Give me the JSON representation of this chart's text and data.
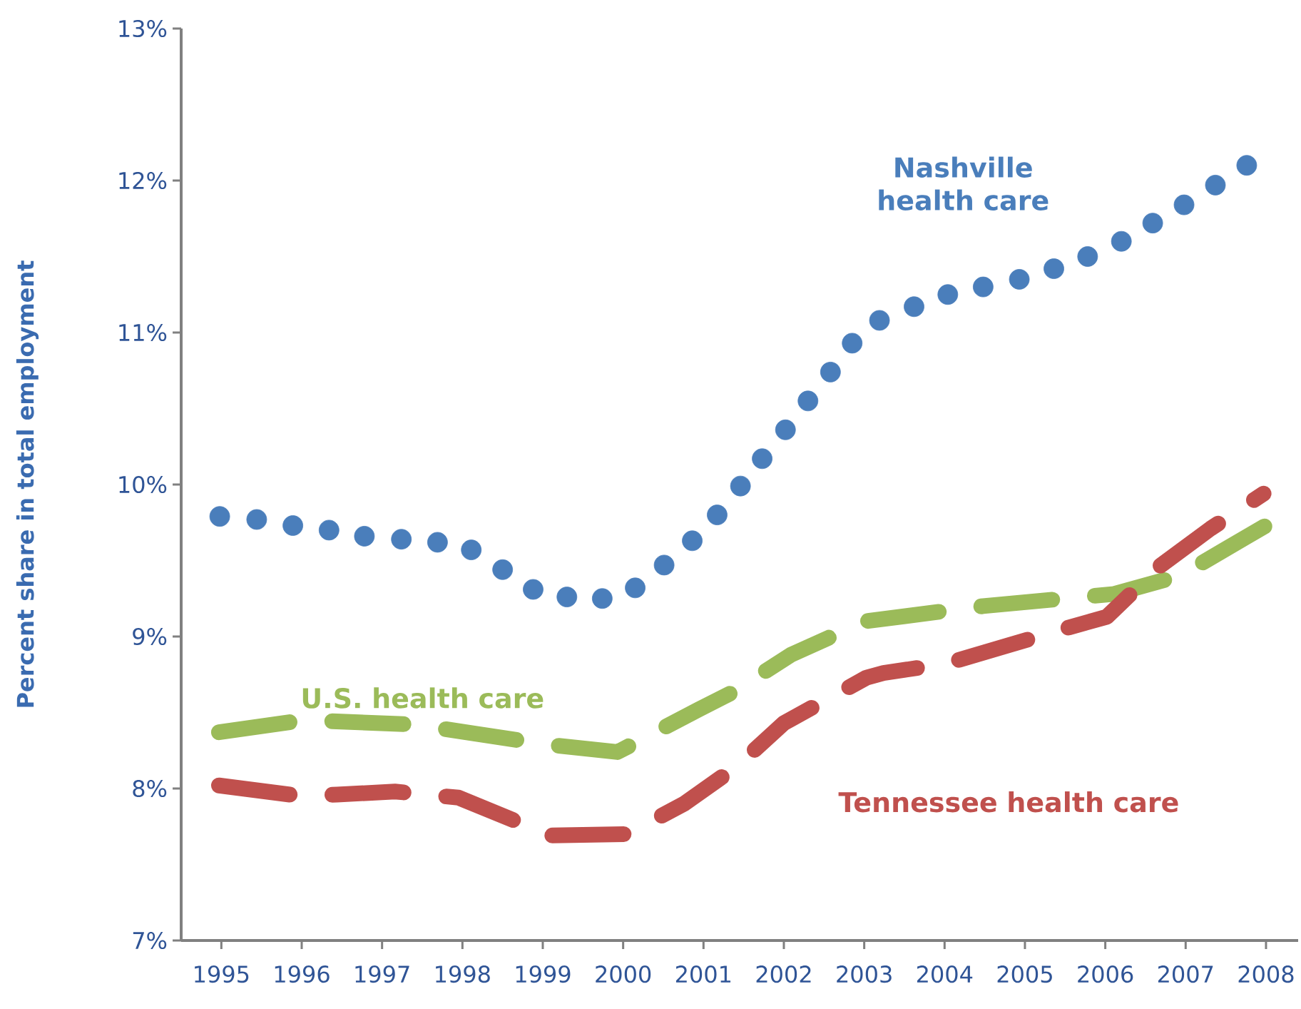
{
  "chart_data": {
    "type": "line",
    "ylabel": "Percent share in total employment",
    "xlim": [
      1995,
      2008.9
    ],
    "ylim": [
      7,
      13
    ],
    "xticks": [
      {
        "value": 1995.5,
        "label": "1995"
      },
      {
        "value": 1996.5,
        "label": "1996"
      },
      {
        "value": 1997.5,
        "label": "1997"
      },
      {
        "value": 1998.5,
        "label": "1998"
      },
      {
        "value": 1999.5,
        "label": "1999"
      },
      {
        "value": 2000.5,
        "label": "2000"
      },
      {
        "value": 2001.5,
        "label": "2001"
      },
      {
        "value": 2002.5,
        "label": "2002"
      },
      {
        "value": 2003.5,
        "label": "2003"
      },
      {
        "value": 2004.5,
        "label": "2004"
      },
      {
        "value": 2005.5,
        "label": "2005"
      },
      {
        "value": 2006.5,
        "label": "2006"
      },
      {
        "value": 2007.5,
        "label": "2007"
      },
      {
        "value": 2008.5,
        "label": "2008"
      }
    ],
    "yticks": [
      {
        "value": 7,
        "label": "7%"
      },
      {
        "value": 8,
        "label": "8%"
      },
      {
        "value": 9,
        "label": "9%"
      },
      {
        "value": 10,
        "label": "10%"
      },
      {
        "value": 11,
        "label": "11%"
      },
      {
        "value": 12,
        "label": "12%"
      },
      {
        "value": 13,
        "label": "13%"
      }
    ],
    "grid": false,
    "series": [
      {
        "name": "Nashville health care",
        "type": "scatter",
        "marker": "circle",
        "color": "#4a7ebb",
        "x": [
          1995.48,
          1995.94,
          1996.39,
          1996.84,
          1997.28,
          1997.74,
          1998.19,
          1998.61,
          1999.0,
          1999.38,
          1999.8,
          2000.24,
          2000.65,
          2001.01,
          2001.36,
          2001.67,
          2001.96,
          2002.23,
          2002.52,
          2002.8,
          2003.08,
          2003.35,
          2003.69,
          2004.12,
          2004.54,
          2004.98,
          2005.43,
          2005.86,
          2006.28,
          2006.7,
          2007.09,
          2007.48,
          2007.87,
          2008.26
        ],
        "values": [
          9.79,
          9.77,
          9.73,
          9.7,
          9.66,
          9.64,
          9.62,
          9.57,
          9.44,
          9.31,
          9.26,
          9.25,
          9.32,
          9.47,
          9.63,
          9.8,
          9.99,
          10.17,
          10.36,
          10.55,
          10.74,
          10.93,
          11.08,
          11.17,
          11.25,
          11.3,
          11.35,
          11.42,
          11.5,
          11.6,
          11.72,
          11.84,
          11.97,
          12.1
        ]
      },
      {
        "name": "U.S. health care",
        "line_style": "dashed",
        "color": "#9bbb59",
        "x": [
          1995.47,
          1996.53,
          1997.92,
          1999.54,
          2000.43,
          2001.44,
          2001.85,
          2002.59,
          2003.51,
          2004.98,
          2006.61,
          2007.43,
          2008.53
        ],
        "values": [
          8.37,
          8.45,
          8.42,
          8.29,
          8.24,
          8.52,
          8.63,
          8.88,
          9.1,
          9.2,
          9.28,
          9.4,
          9.74
        ]
      },
      {
        "name": "Tennessee health care",
        "line_style": "dashed",
        "color": "#c0504d",
        "x": [
          1995.47,
          1996.5,
          1996.94,
          1997.66,
          1998.45,
          1999.19,
          1999.54,
          2000.55,
          2001.26,
          2001.9,
          2002.5,
          2003.53,
          2003.74,
          2004.51,
          2005.28,
          2006.05,
          2006.52,
          2007.17,
          2007.81,
          2008.47
        ],
        "values": [
          8.02,
          7.95,
          7.96,
          7.98,
          7.94,
          7.78,
          7.69,
          7.7,
          7.9,
          8.14,
          8.43,
          8.73,
          8.76,
          8.82,
          8.94,
          9.06,
          9.13,
          9.46,
          9.71,
          9.94
        ]
      }
    ]
  }
}
